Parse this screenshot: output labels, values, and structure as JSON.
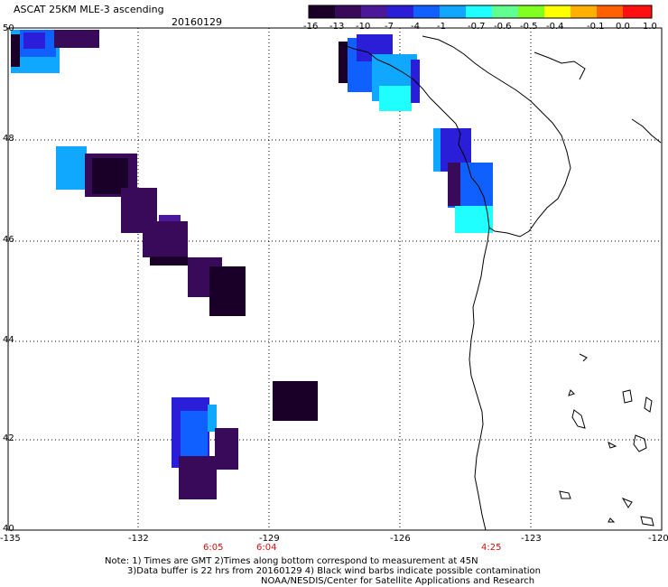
{
  "header": {
    "product": "ASCAT 25KM MLE-3 ascending",
    "date": "20160129"
  },
  "colorbar": {
    "labels": [
      "-16",
      "-13",
      "-10",
      "-7",
      "-4",
      "-1",
      "-0.7",
      "-0.6",
      "-0.5",
      "-0.4",
      "-0.1",
      "0.0",
      "1.0"
    ],
    "colors": [
      "#1a0028",
      "#3a0a5a",
      "#4a1898",
      "#2a1ed8",
      "#1060ff",
      "#10a8ff",
      "#20ffff",
      "#60ff90",
      "#80ff20",
      "#ffff00",
      "#ffb000",
      "#ff6000",
      "#ff1010"
    ]
  },
  "axes": {
    "lat_labels": [
      "50",
      "48",
      "46",
      "44",
      "42",
      "40"
    ],
    "lon_labels": [
      "-135",
      "-132",
      "-129",
      "-126",
      "-123",
      "-120"
    ],
    "times": [
      {
        "label": "6:05"
      },
      {
        "label": "6:04"
      },
      {
        "label": "4:25"
      }
    ]
  },
  "notes": {
    "line1": "Note: 1) Times are GMT 2)Times along bottom correspond to measurement at 45N",
    "line2": "3)Data buffer is 22 hrs from 20160129 4) Black wind barbs indicate possible contamination",
    "line3": "NOAA/NESDIS/Center for Satellite Applications and Research"
  }
}
